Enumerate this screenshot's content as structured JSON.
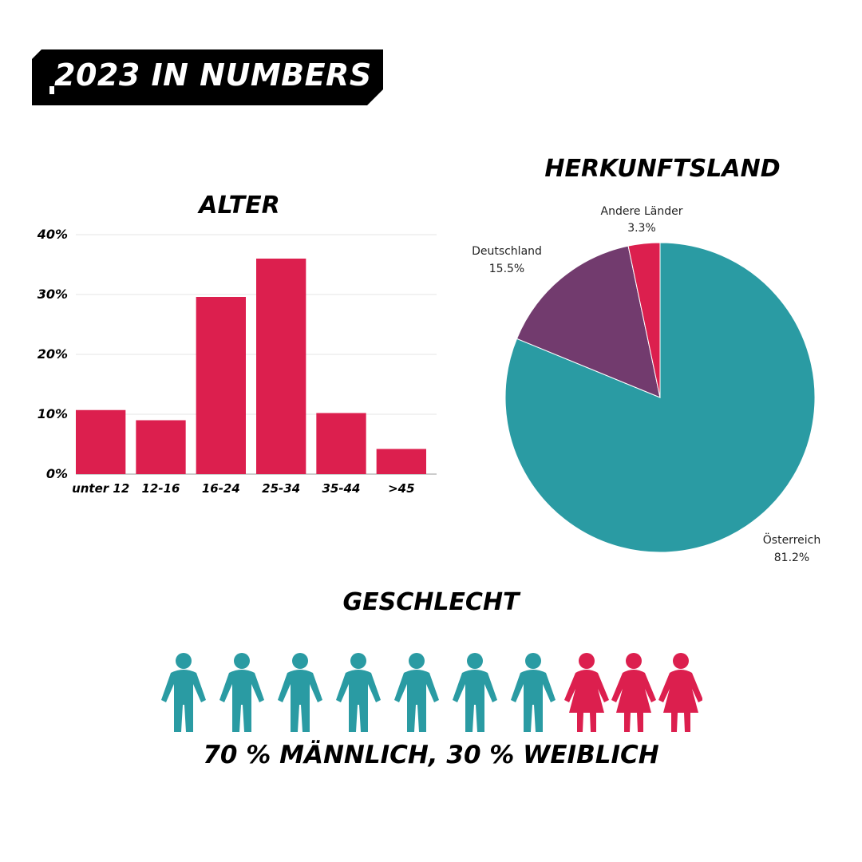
{
  "header": {
    "title": "2023 IN NUMBERS"
  },
  "colors": {
    "crimson": "#dc1f4e",
    "teal": "#2a9ba3",
    "plum": "#723b6e",
    "black": "#000000"
  },
  "chart_data": [
    {
      "type": "bar",
      "title": "ALTER",
      "categories": [
        "unter 12",
        "12-16",
        "16-24",
        "25-34",
        "35-44",
        ">45"
      ],
      "values": [
        10.7,
        9.0,
        29.6,
        36.0,
        10.2,
        4.2
      ],
      "yticks": [
        "0%",
        "10%",
        "20%",
        "30%",
        "40%"
      ],
      "ylim": [
        0,
        40
      ],
      "grid": true
    },
    {
      "type": "pie",
      "title": "HERKUNFTSLAND",
      "slices": [
        {
          "label": "Österreich",
          "value": 81.2,
          "value_label": "81.2%",
          "color": "#2a9ba3"
        },
        {
          "label": "Deutschland",
          "value": 15.5,
          "value_label": "15.5%",
          "color": "#723b6e"
        },
        {
          "label": "Andere Länder",
          "value": 3.3,
          "value_label": "3.3%",
          "color": "#dc1f4e"
        }
      ]
    }
  ],
  "gender": {
    "title": "GESCHLECHT",
    "male_count": 7,
    "female_count": 3,
    "male_icon": "male-person-icon",
    "female_icon": "female-person-icon",
    "caption": "70 % MÄNNLICH, 30 % WEIBLICH"
  }
}
